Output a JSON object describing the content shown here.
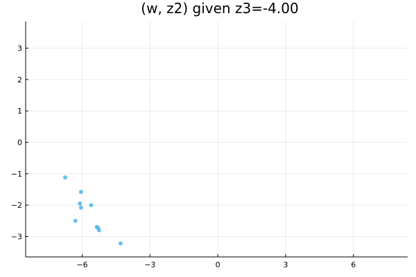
{
  "chart_data": {
    "type": "scatter",
    "title": "(w, z2) given z3=-4.00",
    "xlabel": "",
    "ylabel": "",
    "xlim": [
      -8.5,
      8.4
    ],
    "ylim": [
      -3.65,
      3.85
    ],
    "xticks": [
      -6,
      -3,
      0,
      3,
      6
    ],
    "xtick_labels": [
      "−6",
      "−3",
      "0",
      "3",
      "6"
    ],
    "yticks": [
      -3,
      -2,
      -1,
      0,
      1,
      2,
      3
    ],
    "ytick_labels": [
      "−3",
      "−2",
      "−1",
      "0",
      "1",
      "2",
      "3"
    ],
    "grid": true,
    "legend": "none",
    "marker_color": "#4fb6ea",
    "series": [
      {
        "x": [
          -6.75,
          -6.05,
          -6.1,
          -6.05,
          -5.6,
          -6.3,
          -5.35,
          -5.3,
          -5.25,
          -4.3
        ],
        "y": [
          -1.12,
          -1.58,
          -1.95,
          -2.08,
          -2.0,
          -2.5,
          -2.7,
          -2.72,
          -2.8,
          -3.22
        ]
      }
    ]
  }
}
